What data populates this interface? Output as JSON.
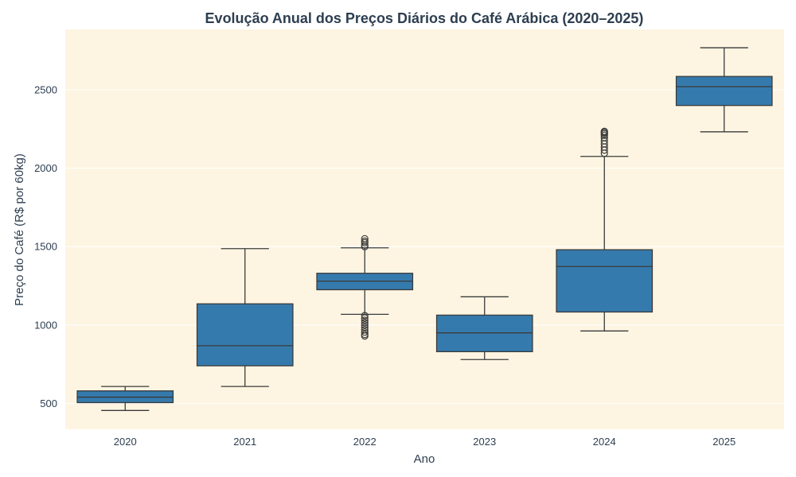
{
  "chart_data": {
    "type": "box",
    "title": "Evolução Anual dos Preços Diários do Café Arábica (2020–2025)",
    "xlabel": "Ano",
    "ylabel": "Preço do Café (R$ por 60kg)",
    "ylim": [
      335,
      2885
    ],
    "yticks": [
      500,
      1000,
      1500,
      2000,
      2500
    ],
    "grid": true,
    "colors": {
      "plot_background": "#fdf5e2",
      "box_fill": "#357aad",
      "line": "#3b3b3b",
      "grid": "#ffffff",
      "text": "#2d3e50"
    },
    "categories": [
      "2020",
      "2021",
      "2022",
      "2023",
      "2024",
      "2025"
    ],
    "boxes": [
      {
        "category": "2020",
        "whisker_low": 455,
        "q1": 505,
        "median": 540,
        "q3": 580,
        "whisker_high": 608,
        "outliers": []
      },
      {
        "category": "2021",
        "whisker_low": 608,
        "q1": 740,
        "median": 868,
        "q3": 1135,
        "whisker_high": 1487,
        "outliers": []
      },
      {
        "category": "2022",
        "whisker_low": 1068,
        "q1": 1225,
        "median": 1280,
        "q3": 1330,
        "whisker_high": 1492,
        "outliers": [
          930,
          940,
          955,
          970,
          985,
          1000,
          1015,
          1030,
          1045,
          1060,
          1500,
          1510,
          1525,
          1535,
          1550
        ]
      },
      {
        "category": "2023",
        "whisker_low": 780,
        "q1": 830,
        "median": 950,
        "q3": 1063,
        "whisker_high": 1180,
        "outliers": []
      },
      {
        "category": "2024",
        "whisker_low": 962,
        "q1": 1083,
        "median": 1373,
        "q3": 1480,
        "whisker_high": 2075,
        "outliers": [
          2095,
          2115,
          2135,
          2155,
          2175,
          2195,
          2210,
          2220,
          2228,
          2235
        ]
      },
      {
        "category": "2025",
        "whisker_low": 2232,
        "q1": 2400,
        "median": 2520,
        "q3": 2585,
        "whisker_high": 2768,
        "outliers": []
      }
    ]
  }
}
